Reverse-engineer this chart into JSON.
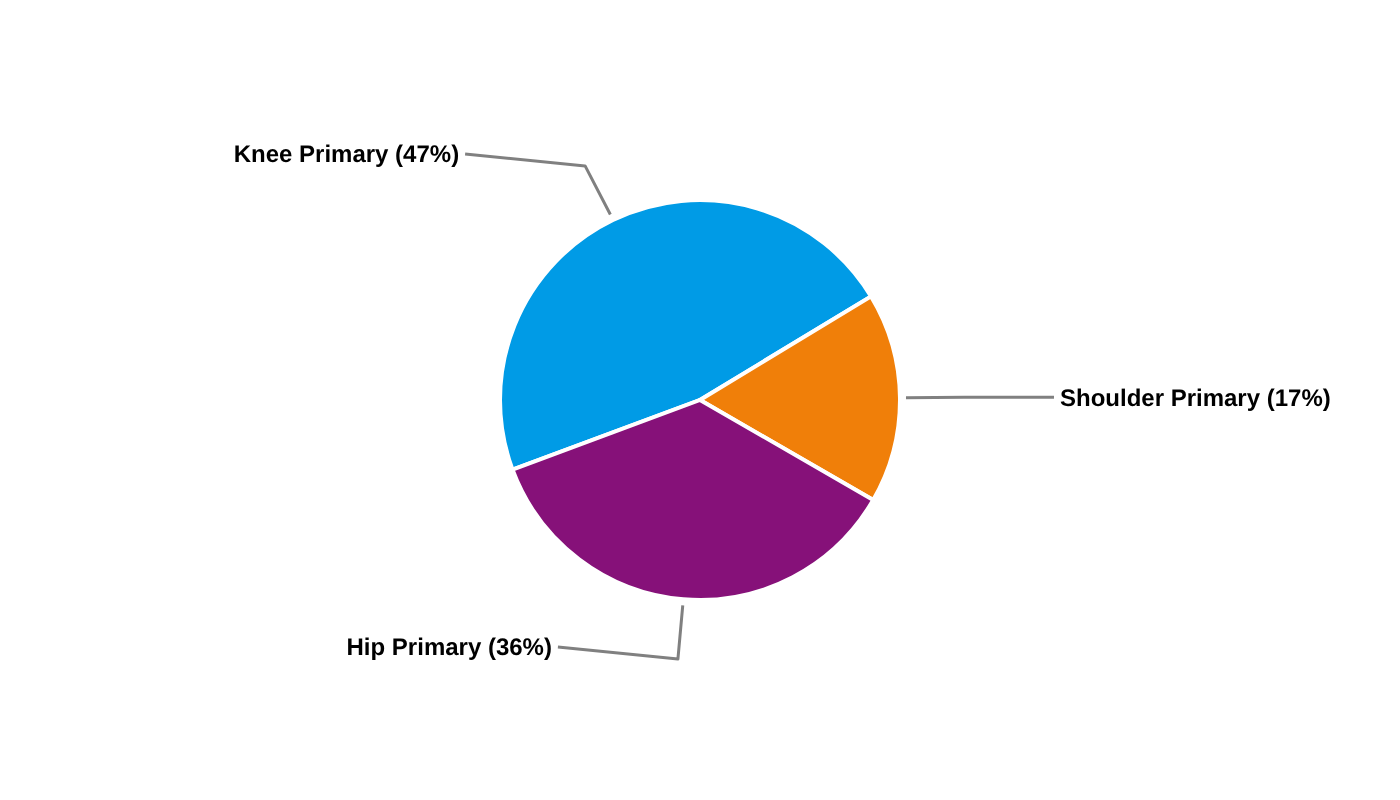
{
  "chart_data": {
    "type": "pie",
    "categories": [
      "Knee Primary (47%)",
      "Shoulder Primary (17%)",
      "Hip Primary (36%)"
    ],
    "values": [
      47,
      17,
      36
    ],
    "colors": [
      "#009be6",
      "#f07f09",
      "#861179"
    ]
  }
}
